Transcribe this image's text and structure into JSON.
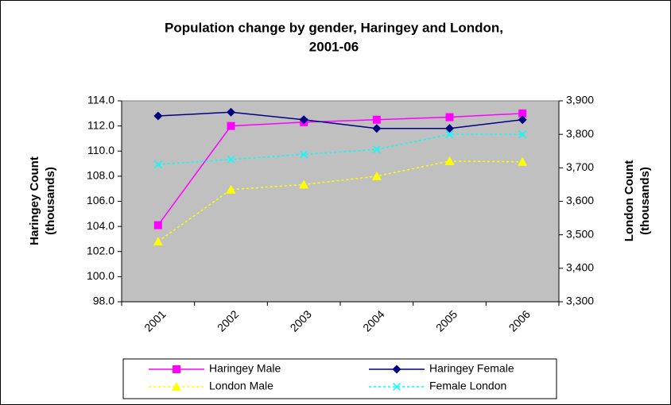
{
  "chart_data": {
    "type": "line",
    "title": [
      "Population change by gender, Haringey and London,",
      "2001-06"
    ],
    "y_label": [
      "Haringey Count",
      "(thousands)"
    ],
    "y2_label": [
      "London Count",
      "(thousands)"
    ],
    "categories": [
      "2001",
      "2002",
      "2003",
      "2004",
      "2005",
      "2006"
    ],
    "ylim": [
      98,
      114
    ],
    "yticks": [
      {
        "value": 98,
        "label": "98.0"
      },
      {
        "value": 100,
        "label": "100.0"
      },
      {
        "value": 102,
        "label": "102.0"
      },
      {
        "value": 104,
        "label": "104.0"
      },
      {
        "value": 106,
        "label": "106.0"
      },
      {
        "value": 108,
        "label": "108.0"
      },
      {
        "value": 110,
        "label": "110.0"
      },
      {
        "value": 112,
        "label": "112.0"
      },
      {
        "value": 114,
        "label": "114.0"
      }
    ],
    "y2lim": [
      3300,
      3900
    ],
    "y2ticks": [
      {
        "value": 3300,
        "label": "3,300"
      },
      {
        "value": 3400,
        "label": "3,400"
      },
      {
        "value": 3500,
        "label": "3,500"
      },
      {
        "value": 3600,
        "label": "3,600"
      },
      {
        "value": 3700,
        "label": "3,700"
      },
      {
        "value": 3800,
        "label": "3,800"
      },
      {
        "value": 3900,
        "label": "3,900"
      }
    ],
    "grid": false,
    "legend": "bottom",
    "series": [
      {
        "name": "Haringey Male",
        "color": "#ff00ff",
        "marker": "square",
        "dashed": false,
        "values": [
          104.1,
          112.0,
          112.3,
          112.5,
          112.7,
          113.0
        ]
      },
      {
        "name": "Haringey Female",
        "color": "#000080",
        "marker": "diamond",
        "dashed": false,
        "values": [
          112.8,
          113.1,
          112.5,
          111.8,
          111.8,
          112.5
        ]
      },
      {
        "name": "London Male",
        "color": "#ffff00",
        "marker": "triangle",
        "dashed": true,
        "axis": "y2",
        "values": [
          3480,
          3635,
          3650,
          3675,
          3720,
          3718
        ]
      },
      {
        "name": "Female London",
        "color": "#00ffff",
        "marker": "x",
        "dashed": true,
        "axis": "y2",
        "values": [
          3710,
          3725,
          3740,
          3755,
          3800,
          3800
        ]
      }
    ]
  }
}
